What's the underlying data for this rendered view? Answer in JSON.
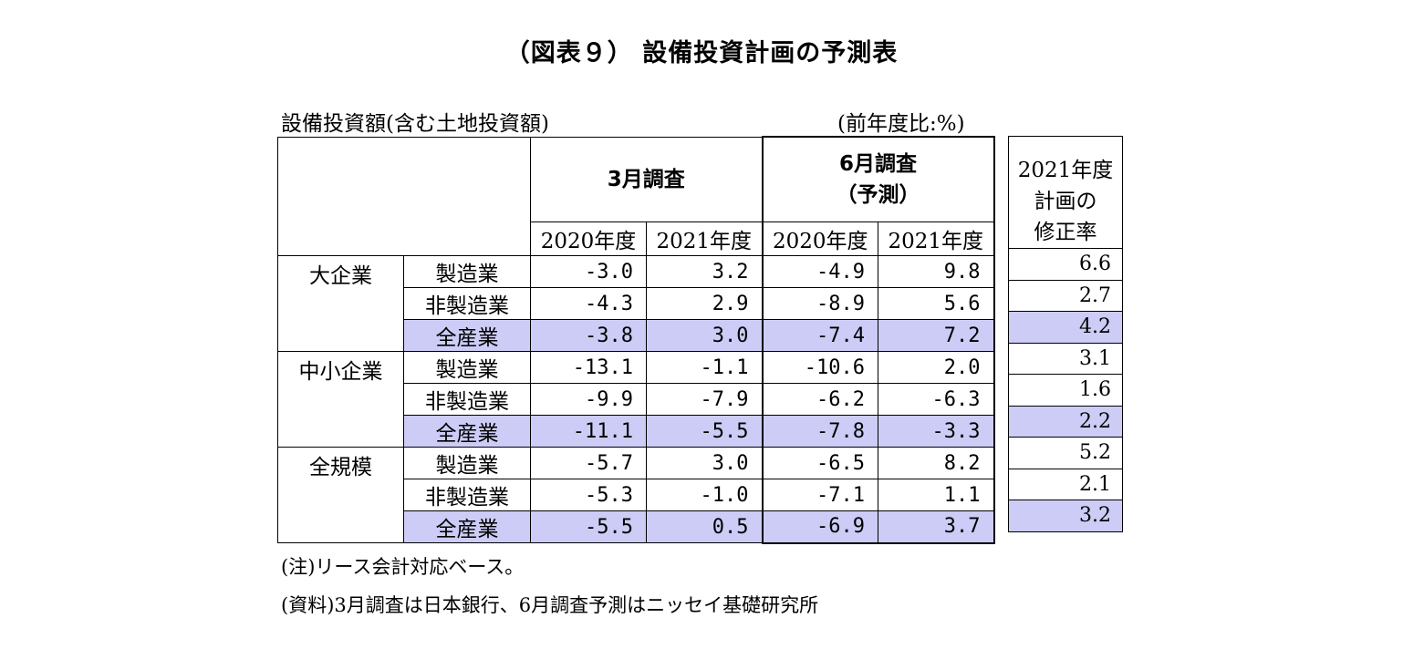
{
  "title": "（図表９） 設備投資計画の予測表",
  "subtitle_left": "設備投資額(含む土地投資額)",
  "subtitle_right": "(前年度比:%)",
  "header": {
    "march_line1": "3月調査",
    "june_line1": "6月調査",
    "june_line2": "（予測）",
    "years": [
      "2020年度",
      "2021年度",
      "2020年度",
      "2021年度"
    ],
    "revision_line1": "2021年度",
    "revision_line2": "計画の",
    "revision_line3": "修正率"
  },
  "groups": [
    {
      "name": "大企業",
      "rows": [
        {
          "industry": "製造業",
          "values": [
            "-3.0",
            "3.2",
            "-4.9",
            "9.8"
          ],
          "revision": "6.6"
        },
        {
          "industry": "非製造業",
          "values": [
            "-4.3",
            "2.9",
            "-8.9",
            "5.6"
          ],
          "revision": "2.7"
        },
        {
          "industry": "全産業",
          "values": [
            "-3.8",
            "3.0",
            "-7.4",
            "7.2"
          ],
          "revision": "4.2"
        }
      ]
    },
    {
      "name": "中小企業",
      "rows": [
        {
          "industry": "製造業",
          "values": [
            "-13.1",
            "-1.1",
            "-10.6",
            "2.0"
          ],
          "revision": "3.1"
        },
        {
          "industry": "非製造業",
          "values": [
            "-9.9",
            "-7.9",
            "-6.2",
            "-6.3"
          ],
          "revision": "1.6"
        },
        {
          "industry": "全産業",
          "values": [
            "-11.1",
            "-5.5",
            "-7.8",
            "-3.3"
          ],
          "revision": "2.2"
        }
      ]
    },
    {
      "name": "全規模",
      "rows": [
        {
          "industry": "製造業",
          "values": [
            "-5.7",
            "3.0",
            "-6.5",
            "8.2"
          ],
          "revision": "5.2"
        },
        {
          "industry": "非製造業",
          "values": [
            "-5.3",
            "-1.0",
            "-7.1",
            "1.1"
          ],
          "revision": "2.1"
        },
        {
          "industry": "全産業",
          "values": [
            "-5.5",
            "0.5",
            "-6.9",
            "3.7"
          ],
          "revision": "3.2"
        }
      ]
    }
  ],
  "notes": {
    "note": "(注)リース会計対応ベース。",
    "source": "(資料)3月調査は日本銀行、6月調査予測はニッセイ基礎研究所"
  },
  "colors": {
    "highlight": "#ccccf6"
  }
}
